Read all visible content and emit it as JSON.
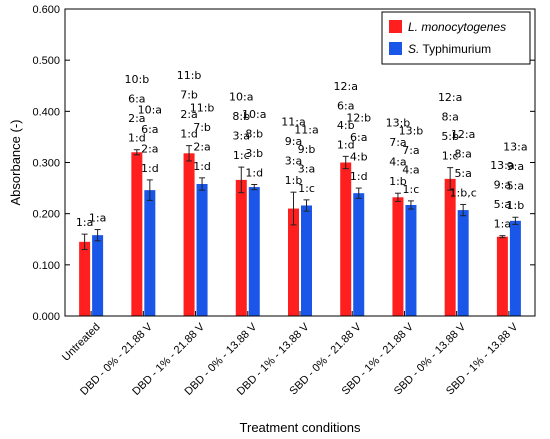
{
  "chart_data": {
    "type": "bar",
    "title": "",
    "xlabel": "Treatment conditions",
    "ylabel": "Absorbance (-)",
    "ylim": [
      0,
      0.6
    ],
    "yticks": [
      "0.000",
      "0.100",
      "0.200",
      "0.300",
      "0.400",
      "0.500",
      "0.600"
    ],
    "grid": false,
    "legend_position": "top-right",
    "categories": [
      "Untreated",
      "DBD - 0% - 21.88 V",
      "DBD - 1% - 21.88 V",
      "DBD - 0% - 13.88 V",
      "DBD - 1% - 13.88 V",
      "SBD - 0% - 21.88 V",
      "SBD - 1% - 21.88 V",
      "SBD - 0% - 13.88 V",
      "SBD - 1% - 13.88 V"
    ],
    "series": [
      {
        "name": "L. monocytogenes",
        "name_prefix": "",
        "name_italic": "L. monocytogenes",
        "color": "#ff1f1f",
        "values": [
          0.145,
          0.32,
          0.318,
          0.266,
          0.21,
          0.3,
          0.232,
          0.268,
          0.155
        ],
        "errors": [
          0.015,
          0.005,
          0.015,
          0.025,
          0.032,
          0.012,
          0.008,
          0.022,
          0.002
        ],
        "annotations": [
          [
            "1:a"
          ],
          [
            "1:d",
            "2:a",
            "6:a",
            "10:b"
          ],
          [
            "1:d",
            "2:a",
            "7:b",
            "11:b"
          ],
          [
            "1:c",
            "3:a",
            "8:b",
            "10:a"
          ],
          [
            "1:b",
            "3:a",
            "9:a",
            "11:a"
          ],
          [
            "1:d",
            "4:b",
            "6:a",
            "12:a"
          ],
          [
            "1:b",
            "4:a",
            "7:a",
            "13:b"
          ],
          [
            "1:c",
            "5:b",
            "8:a",
            "12:a"
          ],
          [
            "1:a",
            "5:a",
            "9:a",
            "13:a"
          ]
        ]
      },
      {
        "name": "S. Typhimurium",
        "name_prefix": "S.",
        "name_italic": "",
        "name_rest": " Typhimurium",
        "color": "#1a56e8",
        "values": [
          0.158,
          0.246,
          0.258,
          0.252,
          0.216,
          0.24,
          0.217,
          0.207,
          0.186
        ],
        "errors": [
          0.011,
          0.02,
          0.012,
          0.005,
          0.011,
          0.01,
          0.008,
          0.011,
          0.007
        ],
        "annotations": [
          [
            "1:a"
          ],
          [
            "1:d",
            "2:a",
            "6:a",
            "10:a"
          ],
          [
            "1:d",
            "2:a",
            "7:b",
            "11:b"
          ],
          [
            "1:d",
            "3:b",
            "8:b",
            "10:a"
          ],
          [
            "1:c",
            "3:a",
            "9:b",
            "11:a"
          ],
          [
            "1:d",
            "4:b",
            "6:a",
            "12:b"
          ],
          [
            "1:c",
            "4:a",
            "7:a",
            "13:b"
          ],
          [
            "1:b,c",
            "5:a",
            "8:a",
            "12:a"
          ],
          [
            "1:b",
            "5:a",
            "9:a",
            "13:a"
          ]
        ]
      }
    ]
  }
}
